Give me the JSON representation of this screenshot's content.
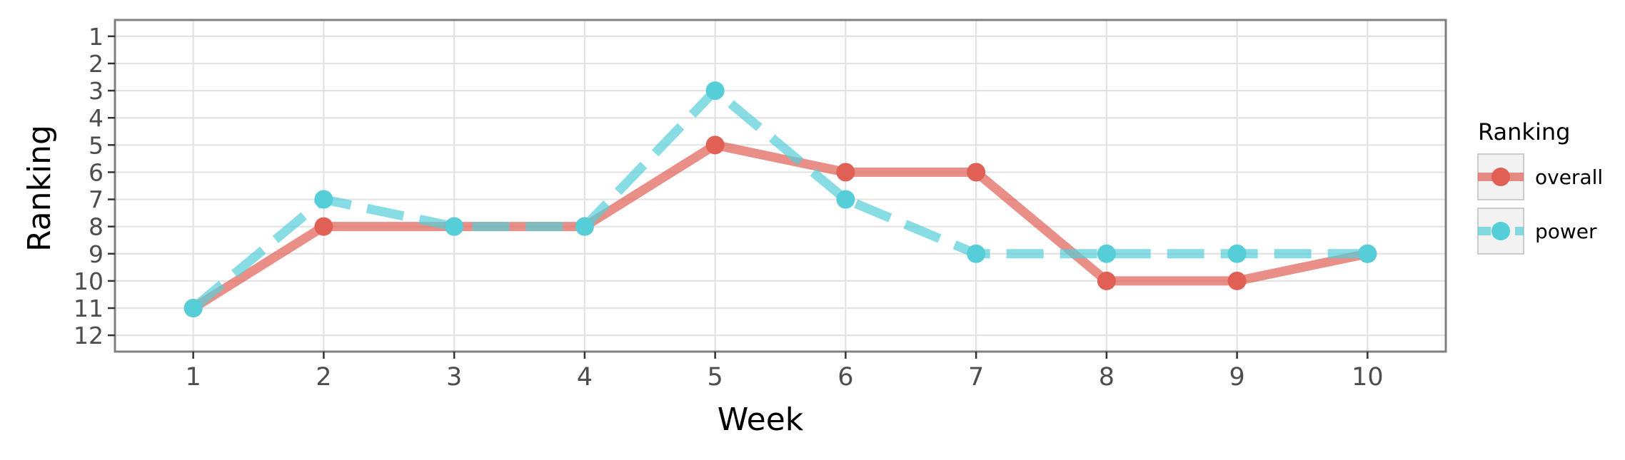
{
  "chart_data": {
    "type": "line",
    "xlabel": "Week",
    "ylabel": "Ranking",
    "x": [
      1,
      2,
      3,
      4,
      5,
      6,
      7,
      8,
      9,
      10
    ],
    "xlim": [
      0.4,
      10.6
    ],
    "ylim": [
      12.6,
      0.4
    ],
    "y_reversed": true,
    "y_ticks": [
      1,
      2,
      3,
      4,
      5,
      6,
      7,
      8,
      9,
      10,
      11,
      12
    ],
    "grid": true,
    "legend": {
      "title": "Ranking",
      "placement": "right"
    },
    "series": [
      {
        "name": "overall",
        "color": "#E06055",
        "line_style": "solid",
        "values": [
          11,
          8,
          8,
          8,
          5,
          6,
          6,
          10,
          10,
          9
        ]
      },
      {
        "name": "power",
        "color": "#55CED8",
        "line_style": "dashed",
        "values": [
          11,
          7,
          8,
          8,
          3,
          7,
          9,
          9,
          9,
          9
        ]
      }
    ]
  }
}
